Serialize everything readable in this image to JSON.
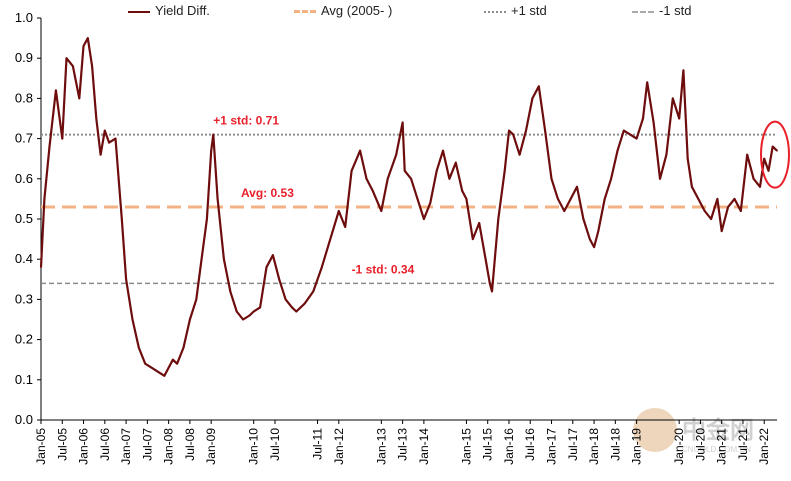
{
  "colors": {
    "series": "#6e0d0d",
    "avg": "#f4b183",
    "std_line": "#8c8c8c",
    "label_red": "#e8202a",
    "highlight": "#e8202a"
  },
  "legend": {
    "yield": "Yield Diff.",
    "avg": "Avg (2005- )",
    "plus_std": "+1 std",
    "minus_std": "-1 std"
  },
  "watermark": {
    "text": "中金网",
    "sub": "CNGOLD.COM.CN"
  },
  "chart_data": {
    "type": "line",
    "series": [
      {
        "name": "Yield Diff.",
        "x": [
          2005.0,
          2005.08,
          2005.2,
          2005.35,
          2005.5,
          2005.6,
          2005.75,
          2005.9,
          2006.0,
          2006.1,
          2006.2,
          2006.3,
          2006.4,
          2006.5,
          2006.6,
          2006.75,
          2006.9,
          2007.0,
          2007.15,
          2007.3,
          2007.45,
          2007.6,
          2007.75,
          2007.9,
          2008.0,
          2008.1,
          2008.2,
          2008.35,
          2008.5,
          2008.65,
          2008.75,
          2008.9,
          2009.0,
          2009.05,
          2009.15,
          2009.3,
          2009.45,
          2009.6,
          2009.75,
          2009.9,
          2010.0,
          2010.15,
          2010.3,
          2010.45,
          2010.6,
          2010.75,
          2010.9,
          2011.0,
          2011.2,
          2011.4,
          2011.6,
          2011.8,
          2012.0,
          2012.15,
          2012.3,
          2012.5,
          2012.65,
          2012.8,
          2013.0,
          2013.15,
          2013.35,
          2013.5,
          2013.55,
          2013.7,
          2013.85,
          2014.0,
          2014.15,
          2014.3,
          2014.45,
          2014.6,
          2014.75,
          2014.9,
          2015.0,
          2015.15,
          2015.3,
          2015.45,
          2015.55,
          2015.6,
          2015.75,
          2015.9,
          2016.0,
          2016.1,
          2016.25,
          2016.4,
          2016.55,
          2016.7,
          2016.85,
          2017.0,
          2017.15,
          2017.3,
          2017.45,
          2017.6,
          2017.75,
          2017.9,
          2018.0,
          2018.1,
          2018.25,
          2018.4,
          2018.55,
          2018.7,
          2018.85,
          2019.0,
          2019.15,
          2019.25,
          2019.4,
          2019.55,
          2019.7,
          2019.85,
          2020.0,
          2020.1,
          2020.2,
          2020.3,
          2020.45,
          2020.6,
          2020.75,
          2020.9,
          2021.0,
          2021.15,
          2021.3,
          2021.45,
          2021.6,
          2021.75,
          2021.9,
          2022.0,
          2022.1,
          2022.2,
          2022.3
        ],
        "y": [
          0.38,
          0.55,
          0.68,
          0.82,
          0.7,
          0.9,
          0.88,
          0.8,
          0.93,
          0.95,
          0.88,
          0.75,
          0.66,
          0.72,
          0.69,
          0.7,
          0.5,
          0.35,
          0.25,
          0.18,
          0.14,
          0.13,
          0.12,
          0.11,
          0.13,
          0.15,
          0.14,
          0.18,
          0.25,
          0.3,
          0.38,
          0.5,
          0.67,
          0.71,
          0.55,
          0.4,
          0.32,
          0.27,
          0.25,
          0.26,
          0.27,
          0.28,
          0.38,
          0.41,
          0.35,
          0.3,
          0.28,
          0.27,
          0.29,
          0.32,
          0.38,
          0.45,
          0.52,
          0.48,
          0.62,
          0.67,
          0.6,
          0.57,
          0.52,
          0.6,
          0.66,
          0.74,
          0.62,
          0.6,
          0.55,
          0.5,
          0.54,
          0.62,
          0.67,
          0.6,
          0.64,
          0.57,
          0.55,
          0.45,
          0.49,
          0.4,
          0.34,
          0.32,
          0.5,
          0.62,
          0.72,
          0.71,
          0.66,
          0.72,
          0.8,
          0.83,
          0.72,
          0.6,
          0.55,
          0.52,
          0.55,
          0.58,
          0.5,
          0.45,
          0.43,
          0.47,
          0.55,
          0.6,
          0.67,
          0.72,
          0.71,
          0.7,
          0.75,
          0.84,
          0.74,
          0.6,
          0.66,
          0.8,
          0.75,
          0.87,
          0.65,
          0.58,
          0.55,
          0.52,
          0.5,
          0.55,
          0.47,
          0.53,
          0.55,
          0.52,
          0.66,
          0.6,
          0.58,
          0.65,
          0.62,
          0.68,
          0.67
        ]
      }
    ],
    "reference_lines": [
      {
        "name": "Avg (2005- )",
        "value": 0.53,
        "label": "Avg: 0.53"
      },
      {
        "name": "+1 std",
        "value": 0.71,
        "label": "+1 std: 0.71"
      },
      {
        "name": "-1 std",
        "value": 0.34,
        "label": "-1 std: 0.34"
      }
    ],
    "ylim": [
      0.0,
      1.0
    ],
    "yticks": [
      "0.0",
      "0.1",
      "0.2",
      "0.3",
      "0.4",
      "0.5",
      "0.6",
      "0.7",
      "0.8",
      "0.9",
      "1.0"
    ],
    "xlim": [
      2005.0,
      2022.3
    ],
    "xticks": [
      "Jan-05",
      "Jul-05",
      "Jan-06",
      "Jul-06",
      "Jan-07",
      "Jul-07",
      "Jan-08",
      "Jul-08",
      "Jan-09",
      "Jan-10",
      "Jul-10",
      "Jul-11",
      "Jan-12",
      "Jan-13",
      "Jul-13",
      "Jan-14",
      "Jan-15",
      "Jul-15",
      "Jan-16",
      "Jul-16",
      "Jan-17",
      "Jul-17",
      "Jan-18",
      "Jul-18",
      "Jan-19",
      "Jan-20",
      "Jul-20",
      "Jan-21",
      "Jul-21",
      "Jan-22"
    ],
    "xtick_positions": [
      2005.0,
      2005.5,
      2006.0,
      2006.5,
      2007.0,
      2007.5,
      2008.0,
      2008.5,
      2009.0,
      2010.0,
      2010.5,
      2011.5,
      2012.0,
      2013.0,
      2013.5,
      2014.0,
      2015.0,
      2015.5,
      2016.0,
      2016.5,
      2017.0,
      2017.5,
      2018.0,
      2018.5,
      2019.0,
      2020.0,
      2020.5,
      2021.0,
      2021.5,
      2022.0
    ],
    "title": "",
    "xlabel": "",
    "ylabel": "",
    "grid": false,
    "legend_position": "top",
    "annotation": "red ellipse highlighting latest values"
  }
}
